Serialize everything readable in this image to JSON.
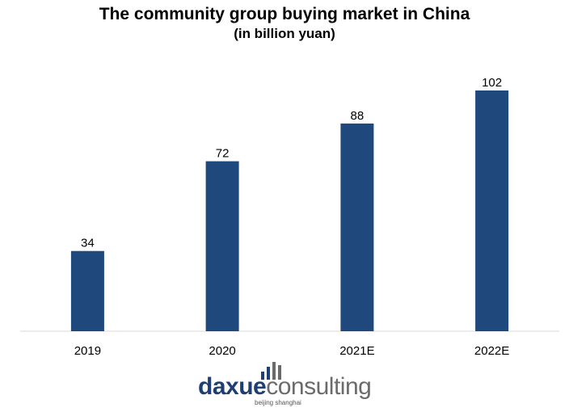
{
  "chart_data": {
    "type": "bar",
    "title": "The community group buying market in China",
    "subtitle": "(in billion yuan)",
    "categories": [
      "2019",
      "2020",
      "2021E",
      "2022E"
    ],
    "values": [
      34,
      72,
      88,
      102
    ],
    "data_labels": [
      "34",
      "72",
      "88",
      "102"
    ],
    "ylim": [
      0,
      102
    ],
    "grid": false,
    "bar_color": "#1f497d"
  },
  "logo": {
    "text_primary": "daxue",
    "text_secondary": "consulting",
    "tagline": "beijing shanghai",
    "colors": {
      "primary": "#1f3f73",
      "secondary": "#6b6b6b"
    }
  }
}
